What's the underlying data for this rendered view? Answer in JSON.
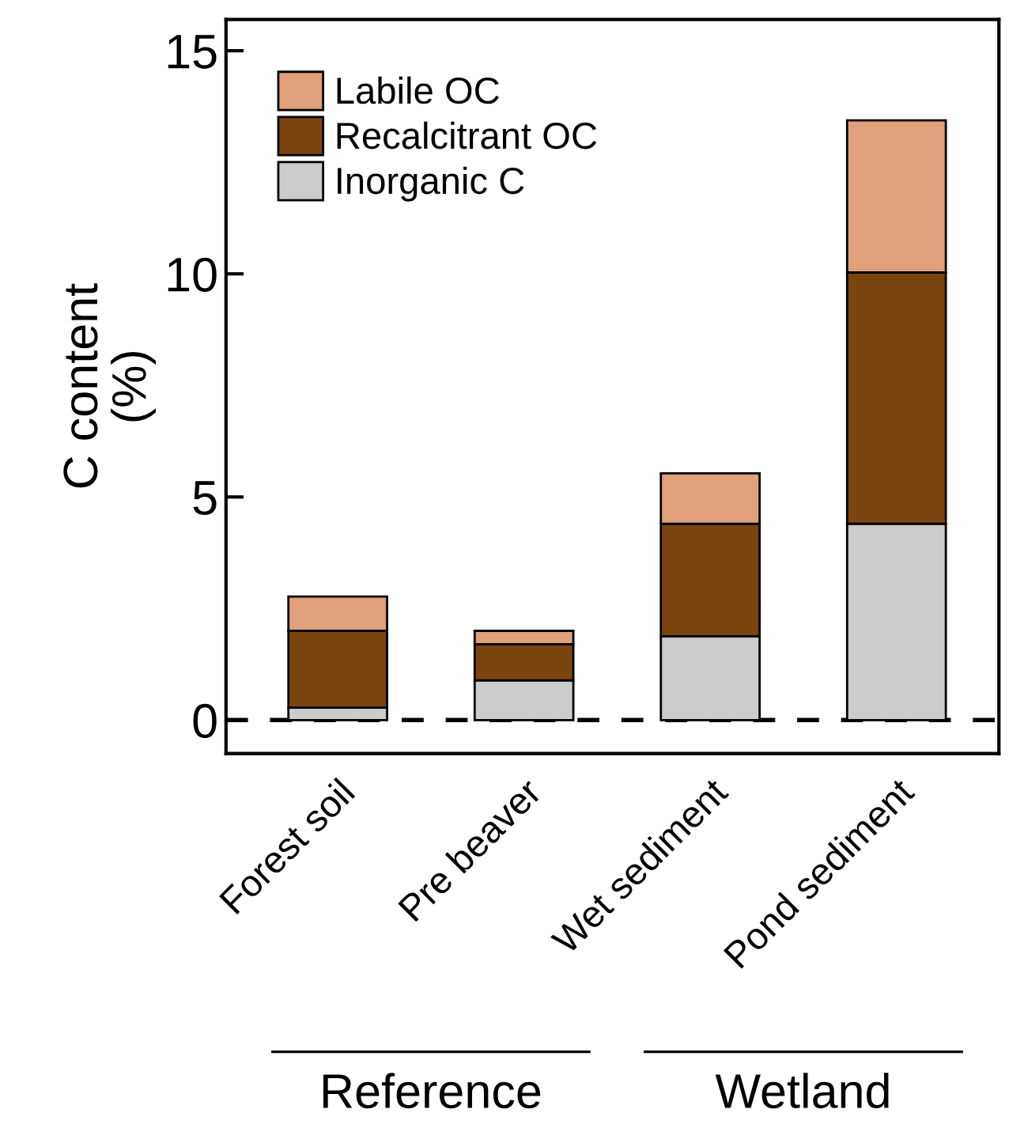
{
  "chart_data": {
    "type": "bar",
    "stacked": true,
    "ylabel": "C content\n(%)",
    "categories": [
      "Forest soil",
      "Pre beaver",
      "Wet sediment",
      "Pond sediment"
    ],
    "series": [
      {
        "name": "Inorganic C",
        "color": "#cccccc",
        "values": [
          0.28,
          0.89,
          1.88,
          4.4
        ]
      },
      {
        "name": "Recalcitrant OC",
        "color": "#7b4510",
        "values": [
          1.72,
          0.81,
          2.52,
          5.63
        ]
      },
      {
        "name": "Labile OC",
        "color": "#e0a07c",
        "values": [
          0.77,
          0.3,
          1.13,
          3.41
        ]
      }
    ],
    "ylim": [
      -0.75,
      15.7
    ],
    "yticks": [
      0,
      5,
      10,
      15
    ],
    "ref_lines": [
      {
        "axis": "y",
        "value": 0,
        "color": "#000000",
        "line_style": "dashed"
      }
    ],
    "annotations": [
      "Reference",
      "Wetland"
    ],
    "legend": "top left",
    "grid": false
  }
}
